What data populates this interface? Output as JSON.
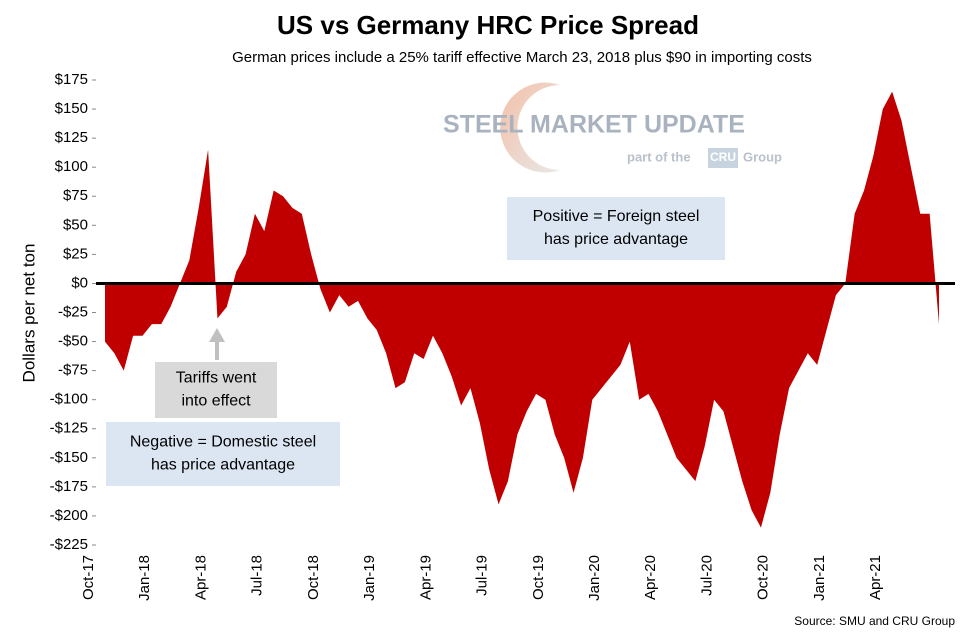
{
  "chart_data": {
    "type": "area",
    "title": "US vs Germany HRC Price Spread",
    "subtitle": "German prices include a 25% tariff effective March 23, 2018 plus $90 in importing costs",
    "y_label": "Dollars per net ton",
    "source": "Source: SMU and CRU Group",
    "logo": {
      "name": "STEEL MARKET UPDATE",
      "tagline": "part of the",
      "brand": "CRU",
      "group": "Group"
    },
    "annotations": [
      {
        "lines": [
          "Tariffs went",
          "into effect"
        ]
      },
      {
        "lines": [
          "Negative = Domestic steel",
          "has price advantage"
        ]
      },
      {
        "lines": [
          "Positive = Foreign steel",
          "has price advantage"
        ]
      }
    ],
    "color": "#c00000",
    "categories": [
      "Oct-17",
      null,
      null,
      null,
      null,
      null,
      "Jan-18",
      null,
      null,
      null,
      null,
      null,
      "Apr-18",
      null,
      null,
      null,
      null,
      null,
      "Jul-18",
      null,
      null,
      null,
      null,
      null,
      "Oct-18",
      null,
      null,
      null,
      null,
      null,
      "Jan-19",
      null,
      null,
      null,
      null,
      null,
      "Apr-19",
      null,
      null,
      null,
      null,
      null,
      "Jul-19",
      null,
      null,
      null,
      null,
      null,
      "Oct-19",
      null,
      null,
      null,
      null,
      null,
      "Jan-20",
      null,
      null,
      null,
      null,
      null,
      "Apr-20",
      null,
      null,
      null,
      null,
      null,
      "Jul-20",
      null,
      null,
      null,
      null,
      null,
      "Oct-20",
      null,
      null,
      null,
      null,
      null,
      "Jan-21",
      null,
      null,
      null,
      null,
      null,
      "Apr-21",
      null,
      null,
      null,
      null,
      null
    ],
    "values": [
      -50,
      -60,
      -75,
      -45,
      -45,
      -35,
      -35,
      -20,
      0,
      20,
      65,
      115,
      -30,
      -20,
      10,
      25,
      60,
      45,
      80,
      75,
      65,
      60,
      25,
      -5,
      -25,
      -10,
      -20,
      -15,
      -30,
      -40,
      -60,
      -90,
      -85,
      -60,
      -65,
      -45,
      -60,
      -80,
      -105,
      -90,
      -120,
      -160,
      -190,
      -170,
      -130,
      -110,
      -95,
      -100,
      -130,
      -150,
      -180,
      -150,
      -100,
      -90,
      -80,
      -70,
      -50,
      -100,
      -95,
      -110,
      -130,
      -150,
      -160,
      -170,
      -140,
      -100,
      -110,
      -140,
      -170,
      -195,
      -210,
      -180,
      -130,
      -90,
      -75,
      -60,
      -70,
      -40,
      -10,
      0,
      60,
      80,
      110,
      150,
      165,
      140,
      100,
      60,
      60,
      -35
    ],
    "ylim": [
      -225,
      175
    ],
    "yticks": [
      {
        "value": 175,
        "label": "$175"
      },
      {
        "value": 150,
        "label": "$150"
      },
      {
        "value": 125,
        "label": "$125"
      },
      {
        "value": 100,
        "label": "$100"
      },
      {
        "value": 75,
        "label": "$75"
      },
      {
        "value": 50,
        "label": "$50"
      },
      {
        "value": 25,
        "label": "$25"
      },
      {
        "value": 0,
        "label": "$0"
      },
      {
        "value": -25,
        "label": "-$25"
      },
      {
        "value": -50,
        "label": "-$50"
      },
      {
        "value": -75,
        "label": "-$75"
      },
      {
        "value": -100,
        "label": "-$100"
      },
      {
        "value": -125,
        "label": "-$125"
      },
      {
        "value": -150,
        "label": "-$150"
      },
      {
        "value": -175,
        "label": "-$175"
      },
      {
        "value": -200,
        "label": "-$200"
      },
      {
        "value": -225,
        "label": "-$225"
      }
    ],
    "grid": false
  }
}
